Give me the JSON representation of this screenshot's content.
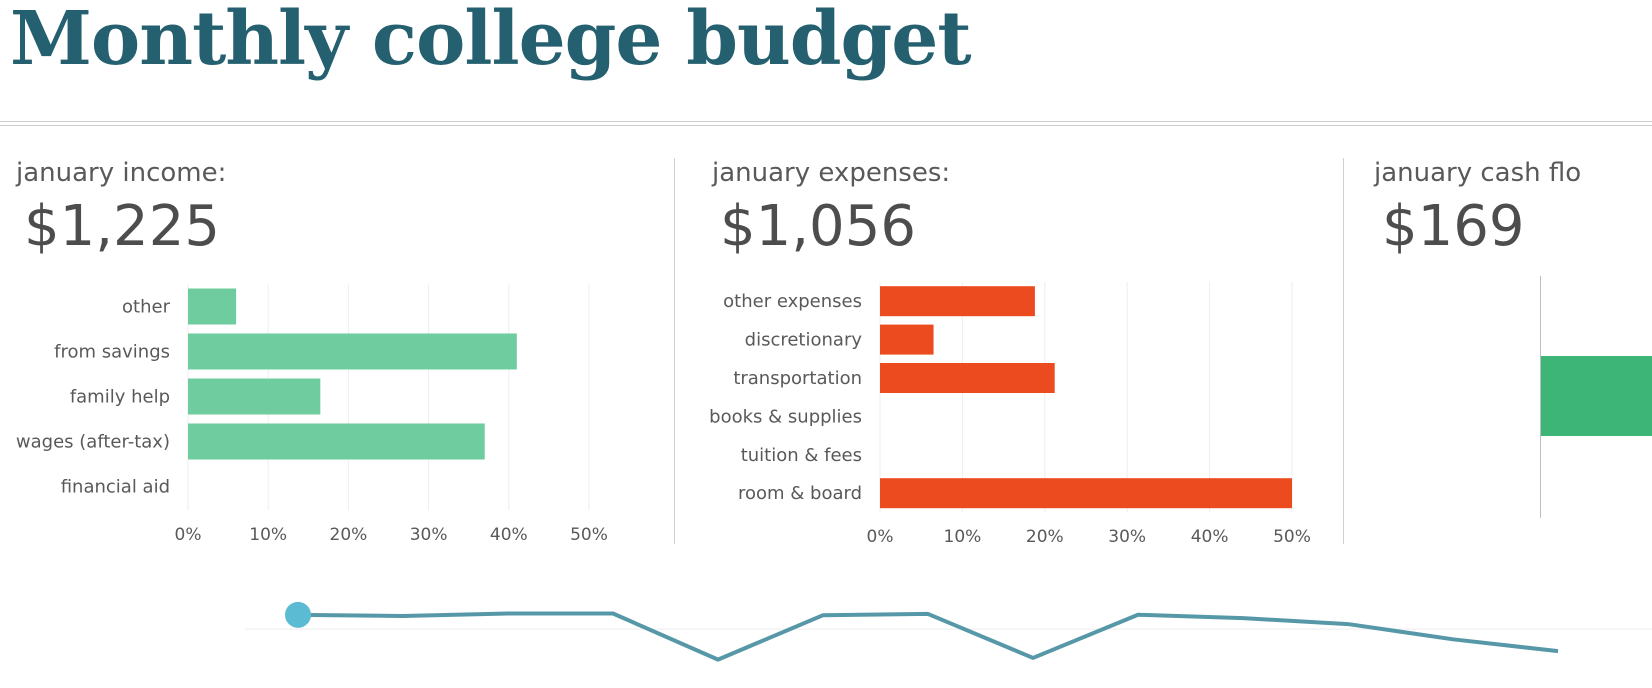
{
  "page": {
    "title": "Monthly college budget"
  },
  "panels": {
    "income": {
      "label": "january income:",
      "amount": "$1,225"
    },
    "expenses": {
      "label": "january expenses:",
      "amount": "$1,056"
    },
    "cashflow": {
      "label": "january cash flo",
      "amount": "$169"
    }
  },
  "colors": {
    "title": "#24606f",
    "income_bar": "#6fcc9e",
    "expense_bar": "#eb4b1e",
    "cashflow_bar": "#3cb577",
    "trend_line": "#5698a8",
    "trend_marker": "#5bbbd3"
  },
  "chart_data": [
    {
      "id": "income",
      "type": "bar",
      "orientation": "horizontal",
      "categories": [
        "other",
        "from savings",
        "family help",
        "wages (after-tax)",
        "financial aid"
      ],
      "values": [
        0.06,
        0.41,
        0.165,
        0.37,
        0
      ],
      "xlim": [
        0,
        0.5
      ],
      "ticks": [
        0,
        0.1,
        0.2,
        0.3,
        0.4,
        0.5
      ],
      "tick_labels": [
        "0%",
        "10%",
        "20%",
        "30%",
        "40%",
        "50%"
      ],
      "title": "",
      "xlabel": "",
      "ylabel": "",
      "grid": true
    },
    {
      "id": "expenses",
      "type": "bar",
      "orientation": "horizontal",
      "categories": [
        "other expenses",
        "discretionary",
        "transportation",
        "books & supplies",
        "tuition & fees",
        "room & board"
      ],
      "values": [
        0.188,
        0.065,
        0.212,
        0,
        0,
        0.5
      ],
      "xlim": [
        0,
        0.5
      ],
      "ticks": [
        0,
        0.1,
        0.2,
        0.3,
        0.4,
        0.5
      ],
      "tick_labels": [
        "0%",
        "10%",
        "20%",
        "30%",
        "40%",
        "50%"
      ],
      "title": "",
      "xlabel": "",
      "ylabel": "",
      "grid": true
    },
    {
      "id": "trend",
      "type": "line",
      "x": [
        1,
        2,
        3,
        4,
        5,
        6,
        7,
        8,
        9,
        10,
        11,
        12,
        13
      ],
      "series": [
        {
          "values": [
            169,
            155,
            185,
            185,
            -360,
            165,
            180,
            -340,
            170,
            130,
            60,
            -120,
            -260
          ]
        }
      ],
      "ylim": [
        -400,
        250
      ],
      "highlighted_point": 0,
      "title": "",
      "xlabel": "",
      "ylabel": ""
    }
  ]
}
